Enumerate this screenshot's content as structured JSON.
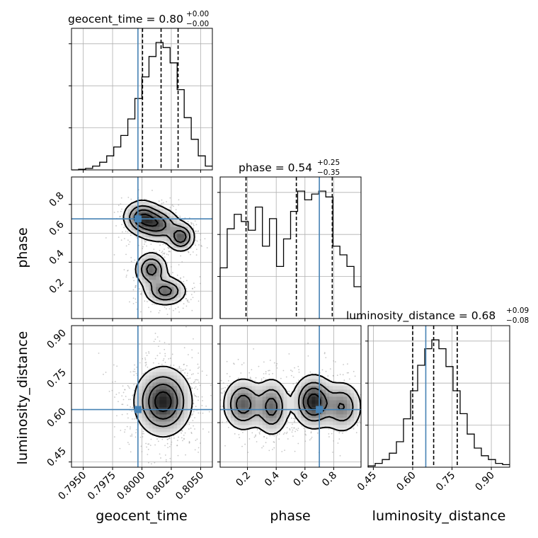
{
  "chart_data": {
    "type": "corner",
    "parameters": [
      "geocent_time",
      "phase",
      "luminosity_distance"
    ],
    "truths": {
      "geocent_time": 0.79966,
      "phase": 0.7,
      "luminosity_distance": 0.65
    },
    "accent_colors": {
      "truth": "#4682b4",
      "contour": "#000000",
      "hist": "#000000"
    },
    "grid": true,
    "titles": [
      {
        "param": "geocent_time",
        "main": "geocent_time = 0.80",
        "sup": "+0.00",
        "sub": "−0.00"
      },
      {
        "param": "phase",
        "main": "phase = 0.54",
        "sup": "+0.25",
        "sub": "−0.35"
      },
      {
        "param": "luminosity_distance",
        "main": "luminosity_distance = 0.68",
        "sup": "+0.09",
        "sub": "−0.08"
      }
    ],
    "axis_labels": {
      "x": [
        "geocent_time",
        "phase",
        "luminosity_distance"
      ],
      "y": [
        "phase",
        "luminosity_distance"
      ]
    },
    "ranges": {
      "geocent_time": [
        0.794,
        0.806
      ],
      "phase": [
        0.01,
        0.99
      ],
      "luminosity_distance": [
        0.43,
        0.97
      ]
    },
    "ticks": {
      "geocent_time": [
        "0.7950",
        "0.7975",
        "0.8000",
        "0.8025",
        "0.8050"
      ],
      "phase_x": [
        "0.2",
        "0.4",
        "0.6",
        "0.8"
      ],
      "phase_y": [
        "0.2",
        "0.4",
        "0.6",
        "0.8"
      ],
      "luminosity_distance": [
        "0.45",
        "0.60",
        "0.75",
        "0.90"
      ]
    },
    "quantiles": {
      "geocent_time": [
        0.80005,
        0.80163,
        0.80308
      ],
      "phase": [
        0.19,
        0.54,
        0.79
      ],
      "luminosity_distance": [
        0.6,
        0.68,
        0.77
      ]
    },
    "histograms": {
      "geocent_time": {
        "bin_edges": [
          0.794,
          0.7946,
          0.7952,
          0.7958,
          0.7964,
          0.797,
          0.7976,
          0.7982,
          0.7988,
          0.7994,
          0.8,
          0.8006,
          0.8012,
          0.8018,
          0.8024,
          0.803,
          0.8036,
          0.8042,
          0.8048,
          0.8054,
          0.806
        ],
        "values": [
          0.0,
          0.005,
          0.012,
          0.03,
          0.06,
          0.11,
          0.18,
          0.27,
          0.4,
          0.56,
          0.73,
          0.89,
          1.0,
          0.96,
          0.84,
          0.63,
          0.41,
          0.24,
          0.11,
          0.03
        ]
      },
      "phase": {
        "bin_edges": [
          0.01,
          0.059,
          0.108,
          0.157,
          0.206,
          0.255,
          0.304,
          0.353,
          0.402,
          0.451,
          0.5,
          0.549,
          0.598,
          0.647,
          0.696,
          0.745,
          0.794,
          0.843,
          0.892,
          0.941,
          0.99
        ],
        "values": [
          0.35,
          0.62,
          0.72,
          0.67,
          0.61,
          0.77,
          0.5,
          0.69,
          0.36,
          0.55,
          0.74,
          0.88,
          0.82,
          0.86,
          0.88,
          0.84,
          0.5,
          0.44,
          0.36,
          0.22
        ]
      },
      "luminosity_distance": {
        "bin_edges": [
          0.43,
          0.457,
          0.484,
          0.511,
          0.538,
          0.565,
          0.592,
          0.619,
          0.646,
          0.673,
          0.7,
          0.727,
          0.754,
          0.781,
          0.808,
          0.835,
          0.862,
          0.889,
          0.916,
          0.943,
          0.97
        ],
        "values": [
          0.01,
          0.03,
          0.06,
          0.11,
          0.2,
          0.38,
          0.6,
          0.8,
          0.93,
          1.0,
          0.93,
          0.79,
          0.6,
          0.42,
          0.26,
          0.15,
          0.09,
          0.06,
          0.03,
          0.02
        ]
      }
    },
    "density_components": {
      "geocent_time_vs_phase": [
        {
          "x": 0.8,
          "y": 0.71,
          "sx": 0.0008,
          "sy": 0.06,
          "w": 1.0
        },
        {
          "x": 0.8014,
          "y": 0.66,
          "sx": 0.0009,
          "sy": 0.06,
          "w": 0.9
        },
        {
          "x": 0.8033,
          "y": 0.575,
          "sx": 0.0006,
          "sy": 0.05,
          "w": 1.0
        },
        {
          "x": 0.8008,
          "y": 0.35,
          "sx": 0.0007,
          "sy": 0.06,
          "w": 0.9
        },
        {
          "x": 0.802,
          "y": 0.2,
          "sx": 0.0009,
          "sy": 0.05,
          "w": 0.9
        }
      ],
      "geocent_time_vs_luminosity_distance": [
        {
          "x": 0.8018,
          "y": 0.68,
          "sx": 0.0012,
          "sy": 0.065,
          "w": 1.0
        }
      ],
      "phase_vs_luminosity_distance": [
        {
          "x": 0.17,
          "y": 0.67,
          "sx": 0.07,
          "sy": 0.05,
          "w": 0.75
        },
        {
          "x": 0.37,
          "y": 0.66,
          "sx": 0.06,
          "sy": 0.055,
          "w": 0.7
        },
        {
          "x": 0.66,
          "y": 0.68,
          "sx": 0.07,
          "sy": 0.05,
          "w": 1.0
        },
        {
          "x": 0.86,
          "y": 0.66,
          "sx": 0.07,
          "sy": 0.05,
          "w": 0.6
        }
      ]
    },
    "contour_levels": [
      0.12,
      0.35,
      0.6,
      0.85
    ]
  }
}
